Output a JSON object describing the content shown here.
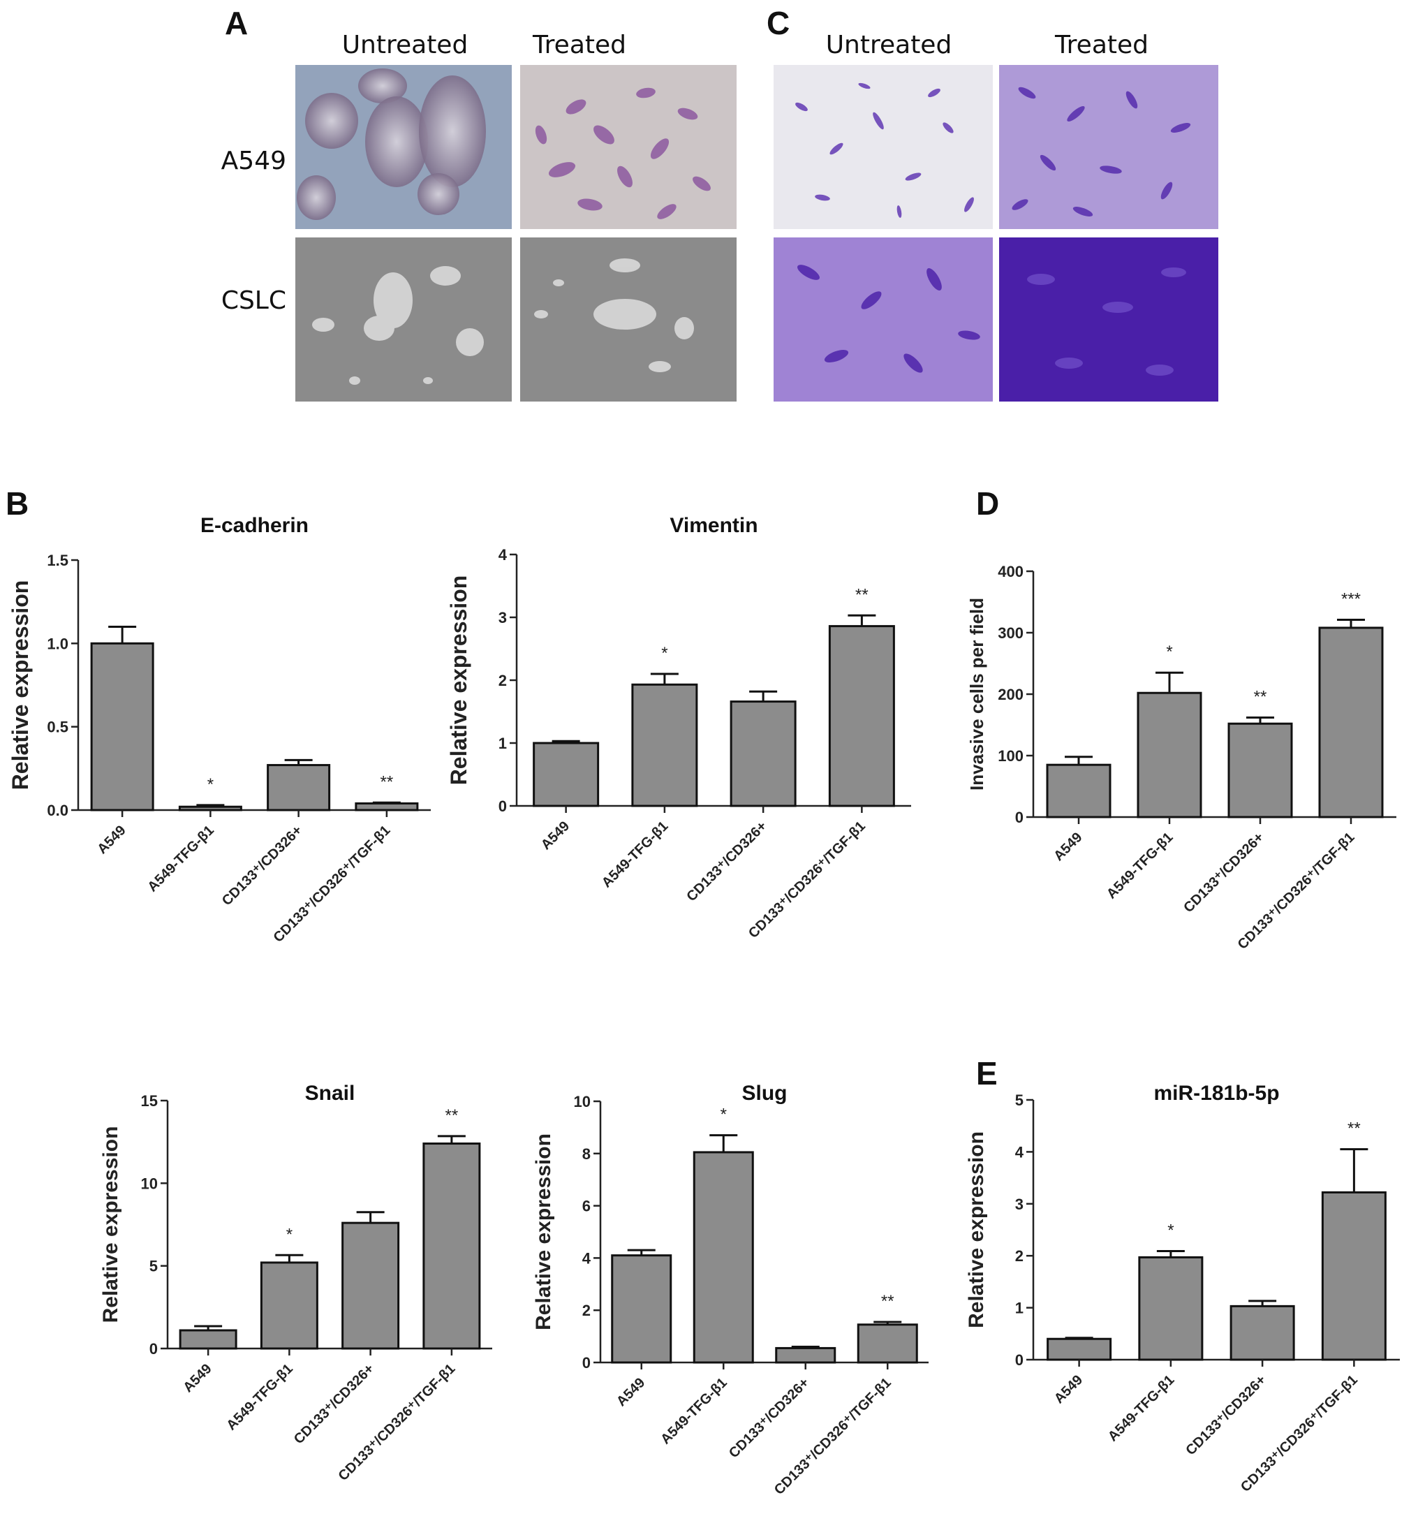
{
  "panels": {
    "A": {
      "letter": "A",
      "col_labels": [
        "Untreated",
        "Treated"
      ],
      "row_labels": [
        "A549",
        "CSLC"
      ]
    },
    "C": {
      "letter": "C",
      "col_labels": [
        "Untreated",
        "Treated"
      ]
    },
    "B": {
      "letter": "B"
    },
    "D": {
      "letter": "D"
    },
    "E": {
      "letter": "E"
    }
  },
  "colors": {
    "bar_fill": "#8c8c8c",
    "bar_stroke": "#111111",
    "phase_contrast_bg": "#8f9fb4",
    "stained_bg": "#c9c2c4",
    "cslc_bg": "#8a8a8a",
    "crystal_violet": "#5a2fb0",
    "crystal_violet_dense": "#4a1fa8"
  },
  "chart_data": [
    {
      "id": "ecad",
      "type": "bar",
      "title": "E-cadherin",
      "ylabel": "Relative expression",
      "categories": [
        "A549",
        "A549-TFG-β1",
        "CD133⁺/CD326+",
        "CD133⁺/CD326⁺/TGF-β1"
      ],
      "values": [
        1.0,
        0.02,
        0.27,
        0.04
      ],
      "errors": [
        0.1,
        0.01,
        0.03,
        0.005
      ],
      "annotations": [
        "",
        "*",
        "",
        "**"
      ],
      "ylim": [
        0,
        1.5
      ],
      "yticks": [
        0,
        0.5,
        1.0,
        1.5
      ],
      "ytick_labels": [
        "0.0",
        "0.5",
        "1.0",
        "1.5"
      ]
    },
    {
      "id": "vim",
      "type": "bar",
      "title": "Vimentin",
      "ylabel": "Relative expression",
      "categories": [
        "A549",
        "A549-TFG-β1",
        "CD133⁺/CD326+",
        "CD133⁺/CD326⁺/TGF-β1"
      ],
      "values": [
        1.0,
        1.93,
        1.66,
        2.86
      ],
      "errors": [
        0.03,
        0.17,
        0.16,
        0.17
      ],
      "annotations": [
        "",
        "*",
        "",
        "**"
      ],
      "ylim": [
        0,
        4
      ],
      "yticks": [
        0,
        1,
        2,
        3,
        4
      ],
      "ytick_labels": [
        "0",
        "1",
        "2",
        "3",
        "4"
      ]
    },
    {
      "id": "inv",
      "type": "bar",
      "title": "",
      "ylabel": "Invasive cells per field",
      "categories": [
        "A549",
        "A549-TFG-β1",
        "CD133⁺/CD326+",
        "CD133⁺/CD326⁺/TGF-β1"
      ],
      "values": [
        85,
        202,
        152,
        308
      ],
      "errors": [
        13,
        33,
        10,
        13
      ],
      "annotations": [
        "",
        "*",
        "**",
        "***"
      ],
      "ylim": [
        0,
        400
      ],
      "yticks": [
        0,
        100,
        200,
        300,
        400
      ],
      "ytick_labels": [
        "0",
        "100",
        "200",
        "300",
        "400"
      ]
    },
    {
      "id": "snail",
      "type": "bar",
      "title": "Snail",
      "ylabel": "Relative expression",
      "categories": [
        "A549",
        "A549-TFG-β1",
        "CD133⁺/CD326+",
        "CD133⁺/CD326⁺/TGF-β1"
      ],
      "values": [
        1.1,
        5.2,
        7.6,
        12.4
      ],
      "errors": [
        0.25,
        0.45,
        0.65,
        0.45
      ],
      "annotations": [
        "",
        "*",
        "",
        "**"
      ],
      "ylim": [
        0,
        15
      ],
      "yticks": [
        0,
        5,
        10,
        15
      ],
      "ytick_labels": [
        "0",
        "5",
        "10",
        "15"
      ]
    },
    {
      "id": "slug",
      "type": "bar",
      "title": "Slug",
      "ylabel": "Relative expression",
      "categories": [
        "A549",
        "A549-TFG-β1",
        "CD133⁺/CD326+",
        "CD133⁺/CD326⁺/TGF-β1"
      ],
      "values": [
        4.1,
        8.05,
        0.55,
        1.45
      ],
      "errors": [
        0.2,
        0.65,
        0.05,
        0.1
      ],
      "annotations": [
        "",
        "*",
        "",
        "**"
      ],
      "ylim": [
        0,
        10
      ],
      "yticks": [
        0,
        2,
        4,
        6,
        8,
        10
      ],
      "ytick_labels": [
        "0",
        "2",
        "4",
        "6",
        "8",
        "10"
      ]
    },
    {
      "id": "mir",
      "type": "bar",
      "title": "miR-181b-5p",
      "ylabel": "Relative expression",
      "categories": [
        "A549",
        "A549-TFG-β1",
        "CD133⁺/CD326+",
        "CD133⁺/CD326⁺/TGF-β1"
      ],
      "values": [
        0.4,
        1.97,
        1.03,
        3.22
      ],
      "errors": [
        0.02,
        0.12,
        0.1,
        0.83
      ],
      "annotations": [
        "",
        "*",
        "",
        "**"
      ],
      "ylim": [
        0,
        5
      ],
      "yticks": [
        0,
        1,
        2,
        3,
        4,
        5
      ],
      "ytick_labels": [
        "0",
        "1",
        "2",
        "3",
        "4",
        "5"
      ]
    }
  ]
}
